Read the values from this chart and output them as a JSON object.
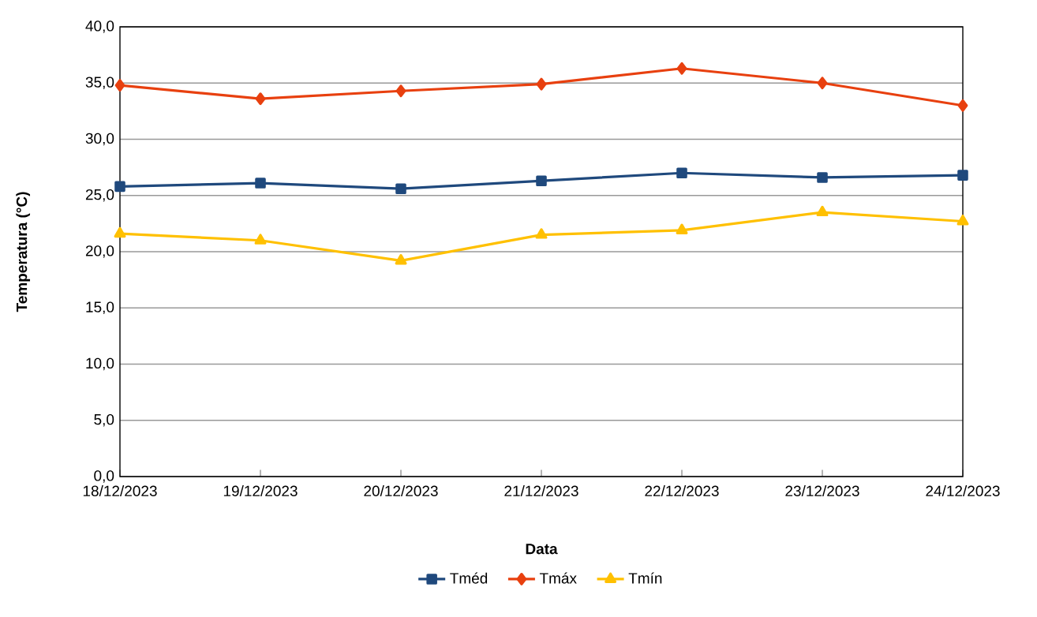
{
  "chart_data": {
    "type": "line",
    "xlabel": "Data",
    "ylabel": "Temperatura (°C)",
    "categories": [
      "18/12/2023",
      "19/12/2023",
      "20/12/2023",
      "21/12/2023",
      "22/12/2023",
      "23/12/2023",
      "24/12/2023"
    ],
    "series": [
      {
        "name": "Tméd",
        "color": "#1f497d",
        "marker": "square",
        "values": [
          25.8,
          26.1,
          25.6,
          26.3,
          27.0,
          26.6,
          26.8
        ]
      },
      {
        "name": "Tmáx",
        "color": "#e8400f",
        "marker": "diamond",
        "values": [
          34.8,
          33.6,
          34.3,
          34.9,
          36.3,
          35.0,
          33.0
        ]
      },
      {
        "name": "Tmín",
        "color": "#ffc000",
        "marker": "triangle",
        "values": [
          21.6,
          21.0,
          19.2,
          21.5,
          21.9,
          23.5,
          22.7
        ]
      }
    ],
    "ylim": [
      0,
      40
    ],
    "yticks": [
      {
        "value": 0,
        "label": "0,0"
      },
      {
        "value": 5,
        "label": "5,0"
      },
      {
        "value": 10,
        "label": "10,0"
      },
      {
        "value": 15,
        "label": "15,0"
      },
      {
        "value": 20,
        "label": "20,0"
      },
      {
        "value": 25,
        "label": "25,0"
      },
      {
        "value": 30,
        "label": "30,0"
      },
      {
        "value": 35,
        "label": "35,0"
      },
      {
        "value": 40,
        "label": "40,0"
      }
    ],
    "grid": "y",
    "legend": "bottom"
  }
}
